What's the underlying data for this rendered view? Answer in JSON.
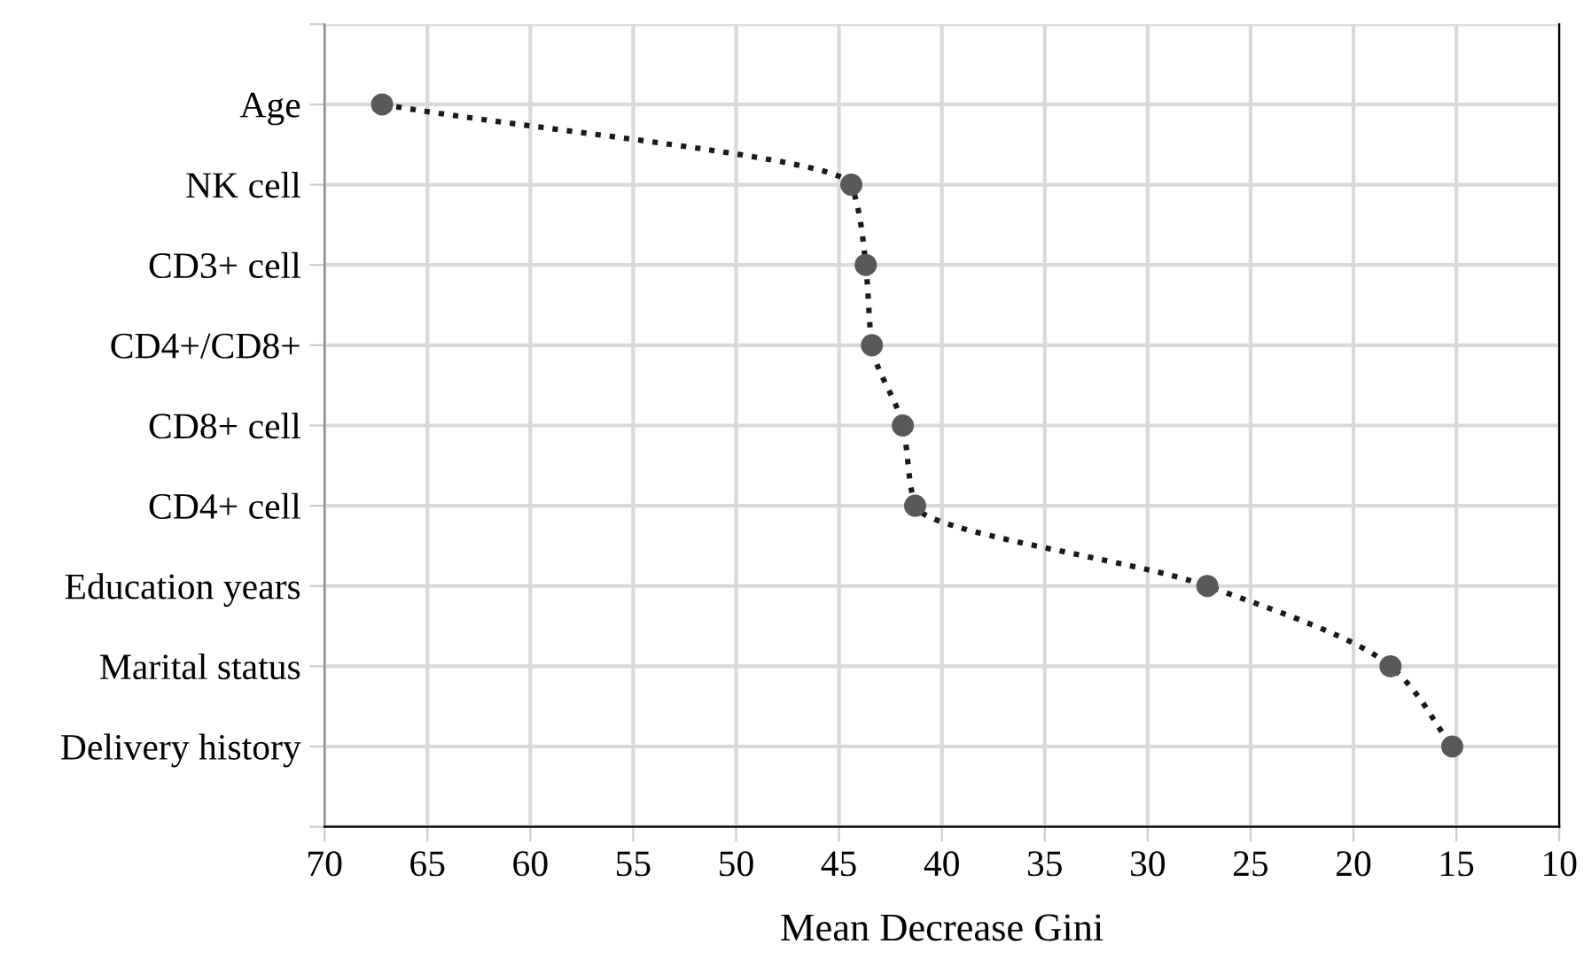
{
  "chart_data": {
    "type": "line",
    "xlabel": "Mean Decrease Gini",
    "categories": [
      "Age",
      "NK cell",
      "CD3+ cell",
      "CD4+/CD8+",
      "CD8+ cell",
      "CD4+ cell",
      "Education years",
      "Marital status",
      "Delivery history"
    ],
    "orientation": "horizontal",
    "series": [
      {
        "color": "#595959",
        "values": [
          67.2,
          44.4,
          43.7,
          43.4,
          41.9,
          41.3,
          27.1,
          18.2,
          15.2
        ]
      }
    ],
    "xlim": [
      70,
      10
    ],
    "xticks": [
      70,
      65,
      60,
      55,
      50,
      45,
      40,
      35,
      30,
      25,
      20,
      15,
      10
    ],
    "grid": true,
    "marker": "circle",
    "line_style": "dotted"
  }
}
